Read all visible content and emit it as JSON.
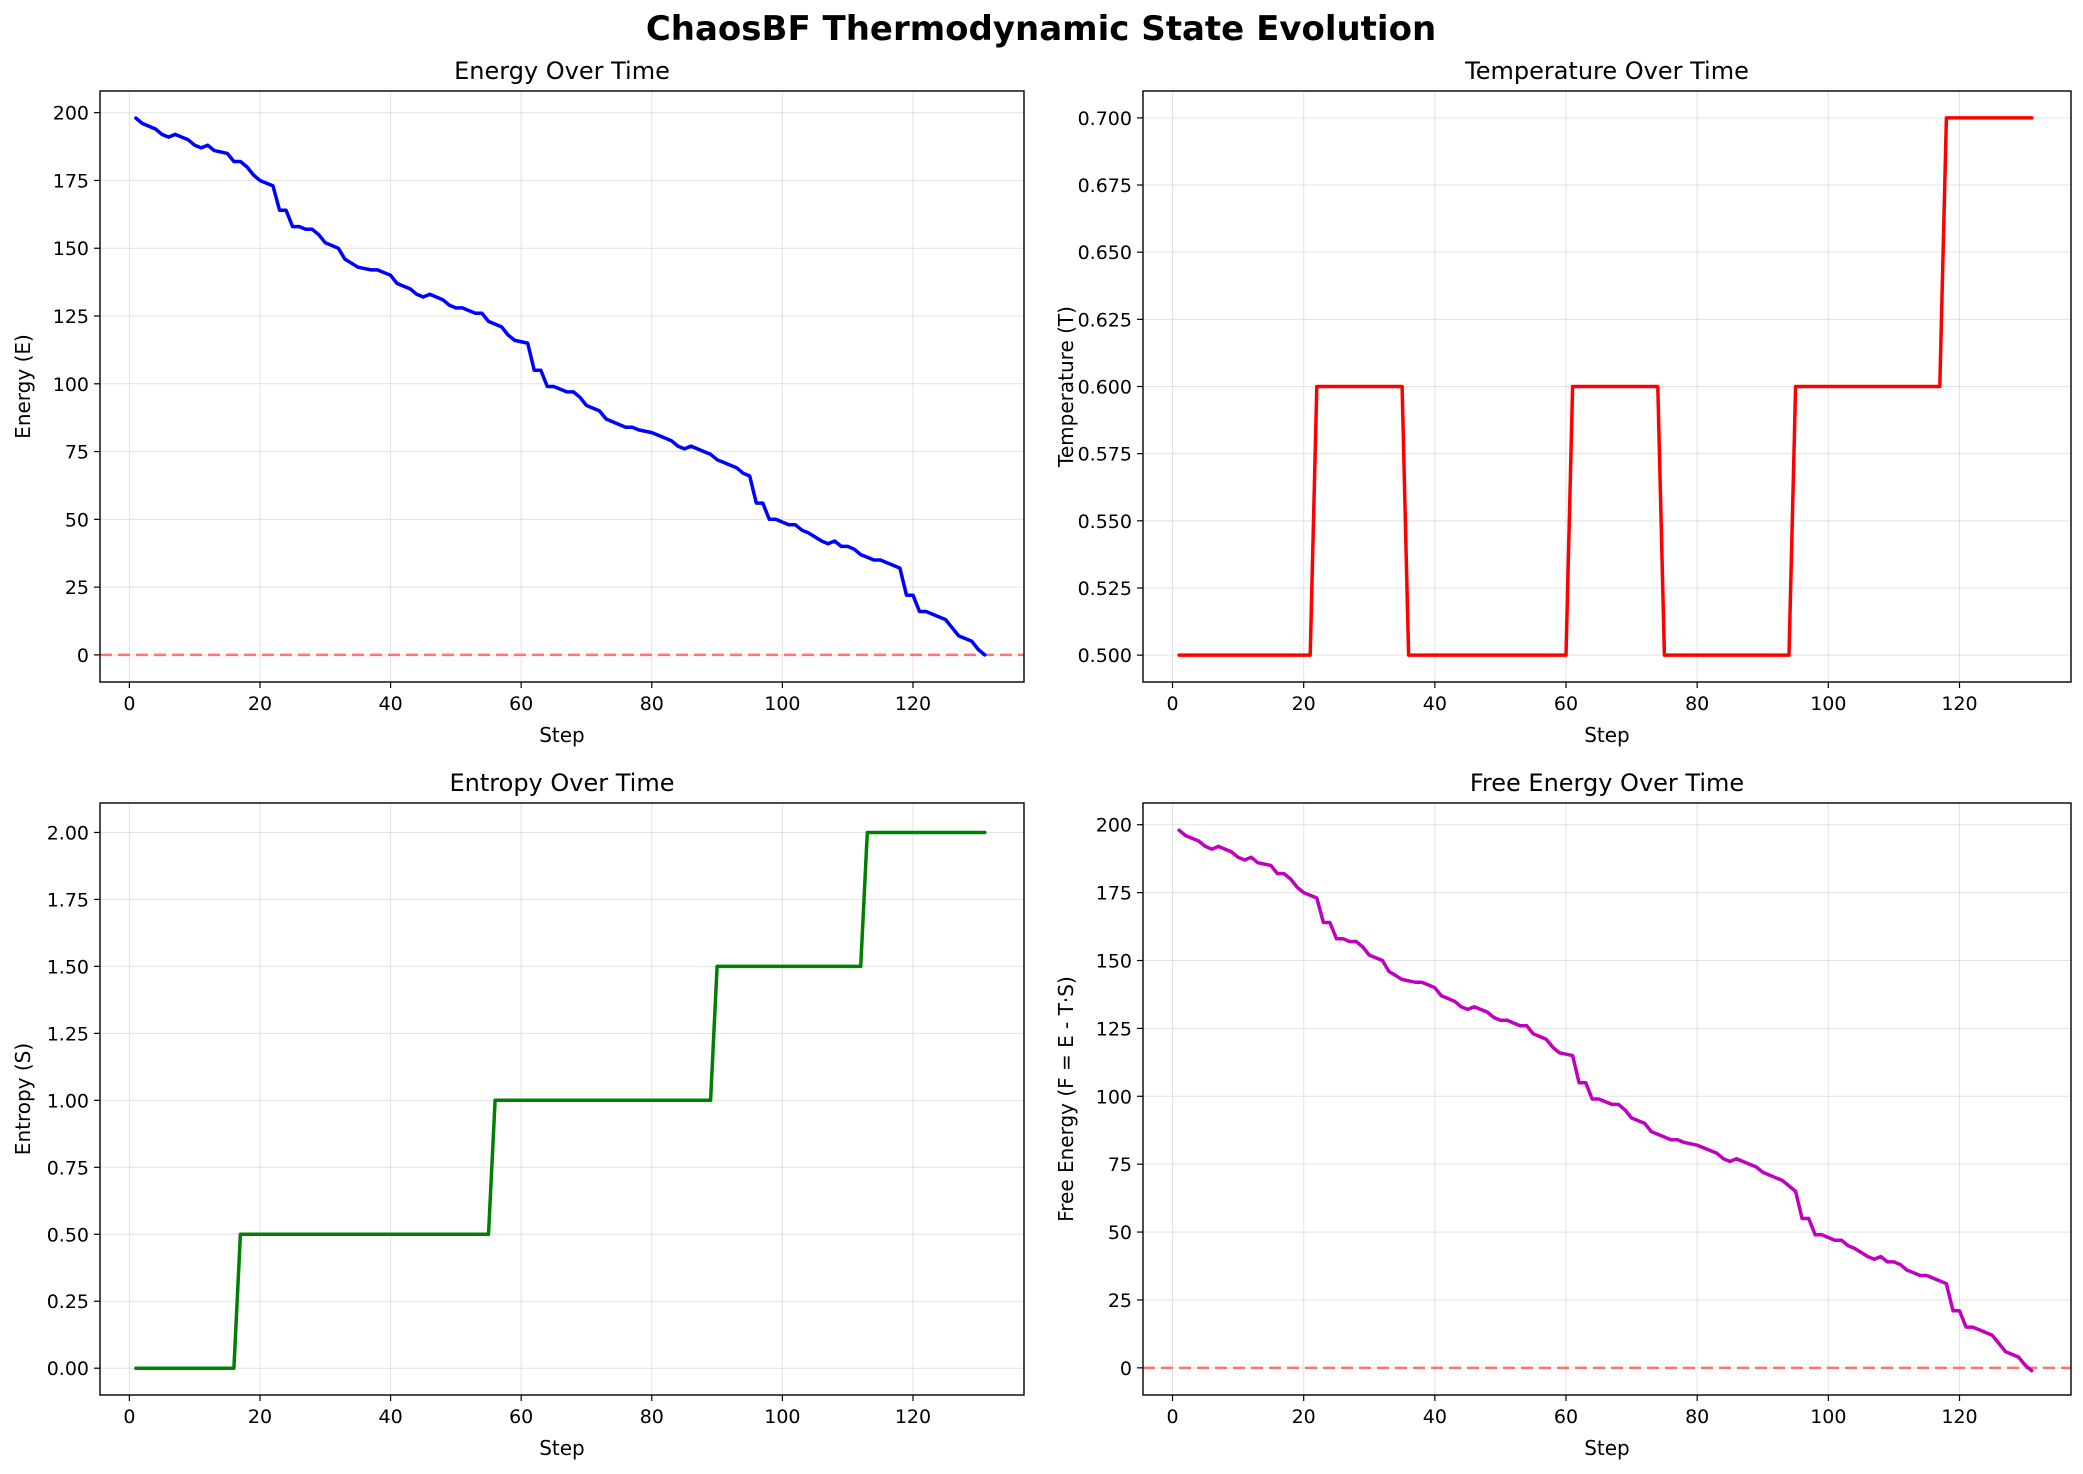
{
  "figure": {
    "title": "ChaosBF Thermodynamic State Evolution"
  },
  "chart_data": [
    {
      "id": "energy",
      "type": "line",
      "title": "Energy Over Time",
      "xlabel": "Step",
      "ylabel": "Energy (E)",
      "xlim": [
        -4.5,
        137
      ],
      "ylim": [
        -10,
        208
      ],
      "xticks": [
        0,
        20,
        40,
        60,
        80,
        100,
        120
      ],
      "yticks": [
        0,
        25,
        50,
        75,
        100,
        125,
        150,
        175,
        200
      ],
      "ytick_labels": [
        "0",
        "25",
        "50",
        "75",
        "100",
        "125",
        "150",
        "175",
        "200"
      ],
      "grid": true,
      "color": "#0000ff",
      "reference_line": {
        "y": 0,
        "color": "#ff6666",
        "style": "dashed"
      },
      "points": [
        [
          1,
          198
        ],
        [
          2,
          196
        ],
        [
          4,
          194
        ],
        [
          5,
          192
        ],
        [
          6,
          191
        ],
        [
          7,
          192
        ],
        [
          9,
          190
        ],
        [
          10,
          188
        ],
        [
          11,
          187
        ],
        [
          12,
          188
        ],
        [
          13,
          186
        ],
        [
          15,
          185
        ],
        [
          16,
          182
        ],
        [
          17,
          182
        ],
        [
          18,
          180
        ],
        [
          19,
          177
        ],
        [
          20,
          175
        ],
        [
          22,
          173
        ],
        [
          23,
          164
        ],
        [
          24,
          164
        ],
        [
          25,
          158
        ],
        [
          26,
          158
        ],
        [
          27,
          157
        ],
        [
          28,
          157
        ],
        [
          29,
          155
        ],
        [
          30,
          152
        ],
        [
          32,
          150
        ],
        [
          33,
          146
        ],
        [
          35,
          143
        ],
        [
          37,
          142
        ],
        [
          38,
          142
        ],
        [
          39,
          141
        ],
        [
          40,
          140
        ],
        [
          41,
          137
        ],
        [
          43,
          135
        ],
        [
          44,
          133
        ],
        [
          45,
          132
        ],
        [
          46,
          133
        ],
        [
          48,
          131
        ],
        [
          49,
          129
        ],
        [
          50,
          128
        ],
        [
          51,
          128
        ],
        [
          52,
          127
        ],
        [
          53,
          126
        ],
        [
          54,
          126
        ],
        [
          55,
          123
        ],
        [
          57,
          121
        ],
        [
          58,
          118
        ],
        [
          59,
          116
        ],
        [
          61,
          115
        ],
        [
          62,
          105
        ],
        [
          63,
          105
        ],
        [
          64,
          99
        ],
        [
          65,
          99
        ],
        [
          66,
          98
        ],
        [
          67,
          97
        ],
        [
          68,
          97
        ],
        [
          69,
          95
        ],
        [
          70,
          92
        ],
        [
          72,
          90
        ],
        [
          73,
          87
        ],
        [
          75,
          85
        ],
        [
          76,
          84
        ],
        [
          77,
          84
        ],
        [
          78,
          83
        ],
        [
          80,
          82
        ],
        [
          81,
          81
        ],
        [
          83,
          79
        ],
        [
          84,
          77
        ],
        [
          85,
          76
        ],
        [
          86,
          77
        ],
        [
          88,
          75
        ],
        [
          89,
          74
        ],
        [
          90,
          72
        ],
        [
          91,
          71
        ],
        [
          92,
          70
        ],
        [
          93,
          69
        ],
        [
          94,
          67
        ],
        [
          95,
          66
        ],
        [
          96,
          56
        ],
        [
          97,
          56
        ],
        [
          98,
          50
        ],
        [
          99,
          50
        ],
        [
          100,
          49
        ],
        [
          101,
          48
        ],
        [
          102,
          48
        ],
        [
          103,
          46
        ],
        [
          104,
          45
        ],
        [
          106,
          42
        ],
        [
          107,
          41
        ],
        [
          108,
          42
        ],
        [
          109,
          40
        ],
        [
          110,
          40
        ],
        [
          111,
          39
        ],
        [
          112,
          37
        ],
        [
          113,
          36
        ],
        [
          114,
          35
        ],
        [
          115,
          35
        ],
        [
          117,
          33
        ],
        [
          118,
          32
        ],
        [
          119,
          22
        ],
        [
          120,
          22
        ],
        [
          121,
          16
        ],
        [
          122,
          16
        ],
        [
          123,
          15
        ],
        [
          125,
          13
        ],
        [
          126,
          10
        ],
        [
          127,
          7
        ],
        [
          129,
          5
        ],
        [
          130,
          2
        ],
        [
          131,
          0
        ]
      ]
    },
    {
      "id": "temperature",
      "type": "line",
      "title": "Temperature Over Time",
      "xlabel": "Step",
      "ylabel": "Temperature (T)",
      "xlim": [
        -4.5,
        137
      ],
      "ylim": [
        0.49,
        0.71
      ],
      "xticks": [
        0,
        20,
        40,
        60,
        80,
        100,
        120
      ],
      "yticks": [
        0.5,
        0.525,
        0.55,
        0.575,
        0.6,
        0.625,
        0.65,
        0.675,
        0.7
      ],
      "ytick_labels": [
        "0.500",
        "0.525",
        "0.550",
        "0.575",
        "0.600",
        "0.625",
        "0.650",
        "0.675",
        "0.700"
      ],
      "grid": true,
      "color": "#ff0000",
      "points": [
        [
          1,
          0.5
        ],
        [
          21,
          0.5
        ],
        [
          22,
          0.6
        ],
        [
          35,
          0.6
        ],
        [
          36,
          0.5
        ],
        [
          60,
          0.5
        ],
        [
          61,
          0.6
        ],
        [
          74,
          0.6
        ],
        [
          75,
          0.5
        ],
        [
          94,
          0.5
        ],
        [
          95,
          0.6
        ],
        [
          117,
          0.6
        ],
        [
          118,
          0.7
        ],
        [
          131,
          0.7
        ]
      ]
    },
    {
      "id": "entropy",
      "type": "line",
      "title": "Entropy Over Time",
      "xlabel": "Step",
      "ylabel": "Entropy (S)",
      "xlim": [
        -4.5,
        137
      ],
      "ylim": [
        -0.1,
        2.11
      ],
      "xticks": [
        0,
        20,
        40,
        60,
        80,
        100,
        120
      ],
      "yticks": [
        0,
        0.25,
        0.5,
        0.75,
        1,
        1.25,
        1.5,
        1.75,
        2
      ],
      "ytick_labels": [
        "0.00",
        "0.25",
        "0.50",
        "0.75",
        "1.00",
        "1.25",
        "1.50",
        "1.75",
        "2.00"
      ],
      "grid": true,
      "color": "#008000",
      "points": [
        [
          1,
          0
        ],
        [
          16,
          0
        ],
        [
          17,
          0.5
        ],
        [
          55,
          0.5
        ],
        [
          56,
          1.0
        ],
        [
          89,
          1.0
        ],
        [
          90,
          1.5
        ],
        [
          112,
          1.5
        ],
        [
          113,
          2.0
        ],
        [
          131,
          2.0
        ]
      ]
    },
    {
      "id": "free-energy",
      "type": "line",
      "title": "Free Energy Over Time",
      "xlabel": "Step",
      "ylabel": "Free Energy (F = E - T·S)",
      "xlim": [
        -4.5,
        137
      ],
      "ylim": [
        -10,
        208
      ],
      "xticks": [
        0,
        20,
        40,
        60,
        80,
        100,
        120
      ],
      "yticks": [
        0,
        25,
        50,
        75,
        100,
        125,
        150,
        175,
        200
      ],
      "ytick_labels": [
        "0",
        "25",
        "50",
        "75",
        "100",
        "125",
        "150",
        "175",
        "200"
      ],
      "grid": true,
      "color": "#bf00bf",
      "reference_line": {
        "y": 0,
        "color": "#ff6666",
        "style": "dashed"
      },
      "points": [
        [
          1,
          198
        ],
        [
          2,
          196
        ],
        [
          4,
          194
        ],
        [
          5,
          192
        ],
        [
          6,
          191
        ],
        [
          7,
          192
        ],
        [
          9,
          190
        ],
        [
          10,
          188
        ],
        [
          11,
          187
        ],
        [
          12,
          188
        ],
        [
          13,
          186
        ],
        [
          15,
          185
        ],
        [
          16,
          182
        ],
        [
          17,
          182
        ],
        [
          18,
          180
        ],
        [
          19,
          177
        ],
        [
          20,
          175
        ],
        [
          22,
          173
        ],
        [
          23,
          164
        ],
        [
          24,
          164
        ],
        [
          25,
          158
        ],
        [
          26,
          158
        ],
        [
          27,
          157
        ],
        [
          28,
          157
        ],
        [
          29,
          155
        ],
        [
          30,
          152
        ],
        [
          32,
          150
        ],
        [
          33,
          146
        ],
        [
          35,
          143
        ],
        [
          37,
          142
        ],
        [
          38,
          142
        ],
        [
          39,
          141
        ],
        [
          40,
          140
        ],
        [
          41,
          137
        ],
        [
          43,
          135
        ],
        [
          44,
          133
        ],
        [
          45,
          132
        ],
        [
          46,
          133
        ],
        [
          48,
          131
        ],
        [
          49,
          129
        ],
        [
          50,
          128
        ],
        [
          51,
          128
        ],
        [
          52,
          127
        ],
        [
          53,
          126
        ],
        [
          54,
          126
        ],
        [
          55,
          123
        ],
        [
          57,
          121
        ],
        [
          58,
          118
        ],
        [
          59,
          116
        ],
        [
          61,
          115
        ],
        [
          62,
          105
        ],
        [
          63,
          105
        ],
        [
          64,
          99
        ],
        [
          65,
          99
        ],
        [
          66,
          98
        ],
        [
          67,
          97
        ],
        [
          68,
          97
        ],
        [
          69,
          95
        ],
        [
          70,
          92
        ],
        [
          72,
          90
        ],
        [
          73,
          87
        ],
        [
          75,
          85
        ],
        [
          76,
          84
        ],
        [
          77,
          84
        ],
        [
          78,
          83
        ],
        [
          80,
          82
        ],
        [
          81,
          81
        ],
        [
          83,
          79
        ],
        [
          84,
          77
        ],
        [
          85,
          76
        ],
        [
          86,
          77
        ],
        [
          88,
          75
        ],
        [
          89,
          74
        ],
        [
          90,
          72
        ],
        [
          91,
          71
        ],
        [
          92,
          70
        ],
        [
          93,
          69
        ],
        [
          94,
          67
        ],
        [
          95,
          65
        ],
        [
          96,
          55
        ],
        [
          97,
          55
        ],
        [
          98,
          49
        ],
        [
          99,
          49
        ],
        [
          100,
          48
        ],
        [
          101,
          47
        ],
        [
          102,
          47
        ],
        [
          103,
          45
        ],
        [
          104,
          44
        ],
        [
          106,
          41
        ],
        [
          107,
          40
        ],
        [
          108,
          41
        ],
        [
          109,
          39
        ],
        [
          110,
          39
        ],
        [
          111,
          38
        ],
        [
          112,
          36
        ],
        [
          113,
          35
        ],
        [
          114,
          34
        ],
        [
          115,
          34
        ],
        [
          117,
          32
        ],
        [
          118,
          31
        ],
        [
          119,
          21
        ],
        [
          120,
          21
        ],
        [
          121,
          15
        ],
        [
          122,
          15
        ],
        [
          123,
          14
        ],
        [
          125,
          12
        ],
        [
          126,
          9
        ],
        [
          127,
          6
        ],
        [
          129,
          4
        ],
        [
          130,
          1
        ],
        [
          131,
          -1
        ]
      ]
    }
  ]
}
